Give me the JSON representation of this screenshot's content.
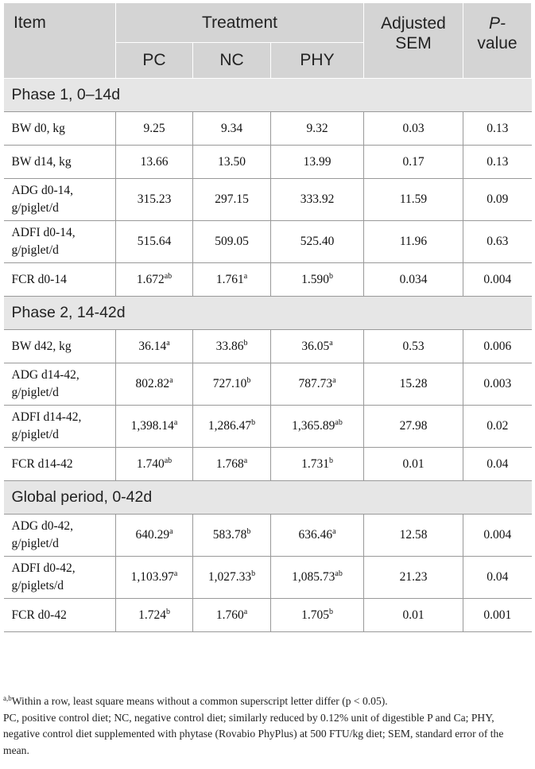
{
  "header": {
    "item": "Item",
    "treatment": "Treatment",
    "pc": "PC",
    "nc": "NC",
    "phy": "PHY",
    "sem_line1": "Adjusted",
    "sem_line2": "SEM",
    "p_line1": "P-",
    "p_line2": "value"
  },
  "phases": [
    {
      "title": "Phase 1, 0–14d",
      "rows": [
        {
          "l1": "BW d0, kg",
          "l2": "",
          "pc": "9.25",
          "pc_sup": "",
          "nc": "9.34",
          "nc_sup": "",
          "phy": "9.32",
          "phy_sup": "",
          "sem": "0.03",
          "p": "0.13"
        },
        {
          "l1": "BW d14, kg",
          "l2": "",
          "pc": "13.66",
          "pc_sup": "",
          "nc": "13.50",
          "nc_sup": "",
          "phy": "13.99",
          "phy_sup": "",
          "sem": "0.17",
          "p": "0.13"
        },
        {
          "l1": "ADG d0-14,",
          "l2": "g/piglet/d",
          "pc": "315.23",
          "pc_sup": "",
          "nc": "297.15",
          "nc_sup": "",
          "phy": "333.92",
          "phy_sup": "",
          "sem": "11.59",
          "p": "0.09"
        },
        {
          "l1": "ADFI d0-14,",
          "l2": "g/piglet/d",
          "pc": "515.64",
          "pc_sup": "",
          "nc": "509.05",
          "nc_sup": "",
          "phy": "525.40",
          "phy_sup": "",
          "sem": "11.96",
          "p": "0.63"
        },
        {
          "l1": "FCR d0-14",
          "l2": "",
          "pc": "1.672",
          "pc_sup": "ab",
          "nc": "1.761",
          "nc_sup": "a",
          "phy": "1.590",
          "phy_sup": "b",
          "sem": "0.034",
          "p": "0.004"
        }
      ]
    },
    {
      "title": "Phase 2, 14-42d",
      "rows": [
        {
          "l1": "BW d42, kg",
          "l2": "",
          "pc": "36.14",
          "pc_sup": "a",
          "nc": "33.86",
          "nc_sup": "b",
          "phy": "36.05",
          "phy_sup": "a",
          "sem": "0.53",
          "p": "0.006"
        },
        {
          "l1": "ADG d14-42,",
          "l2": "g/piglet/d",
          "pc": "802.82",
          "pc_sup": "a",
          "nc": "727.10",
          "nc_sup": "b",
          "phy": "787.73",
          "phy_sup": "a",
          "sem": "15.28",
          "p": "0.003"
        },
        {
          "l1": "ADFI d14-42,",
          "l2": "g/piglet/d",
          "pc": "1,398.14",
          "pc_sup": "a",
          "nc": "1,286.47",
          "nc_sup": "b",
          "phy": "1,365.89",
          "phy_sup": "ab",
          "sem": "27.98",
          "p": "0.02"
        },
        {
          "l1": "FCR d14-42",
          "l2": "",
          "pc": "1.740",
          "pc_sup": "ab",
          "nc": "1.768",
          "nc_sup": "a",
          "phy": "1.731",
          "phy_sup": "b",
          "sem": "0.01",
          "p": "0.04"
        }
      ]
    },
    {
      "title": "Global period, 0-42d",
      "rows": [
        {
          "l1": "ADG d0-42,",
          "l2": "g/piglet/d",
          "pc": "640.29",
          "pc_sup": "a",
          "nc": "583.78",
          "nc_sup": "b",
          "phy": "636.46",
          "phy_sup": "a",
          "sem": "12.58",
          "p": "0.004"
        },
        {
          "l1": "ADFI d0-42,",
          "l2": "g/piglets/d",
          "pc": "1,103.97",
          "pc_sup": "a",
          "nc": "1,027.33",
          "nc_sup": "b",
          "phy": "1,085.73",
          "phy_sup": "ab",
          "sem": "21.23",
          "p": "0.04"
        },
        {
          "l1": "FCR d0-42",
          "l2": "",
          "pc": "1.724",
          "pc_sup": "b",
          "nc": "1.760",
          "nc_sup": "a",
          "phy": "1.705",
          "phy_sup": "b",
          "sem": "0.01",
          "p": "0.001"
        }
      ]
    }
  ],
  "footnotes": {
    "sup": "a,b",
    "line1": "Within a row, least square means without a common superscript letter differ (p < 0.05).",
    "line2": "PC, positive control diet; NC, negative control diet; similarly reduced by 0.12% unit of digestible P and Ca; PHY, negative control diet supplemented with phytase (Rovabio PhyPlus) at 500 FTU/kg diet; SEM, standard error of the mean."
  }
}
